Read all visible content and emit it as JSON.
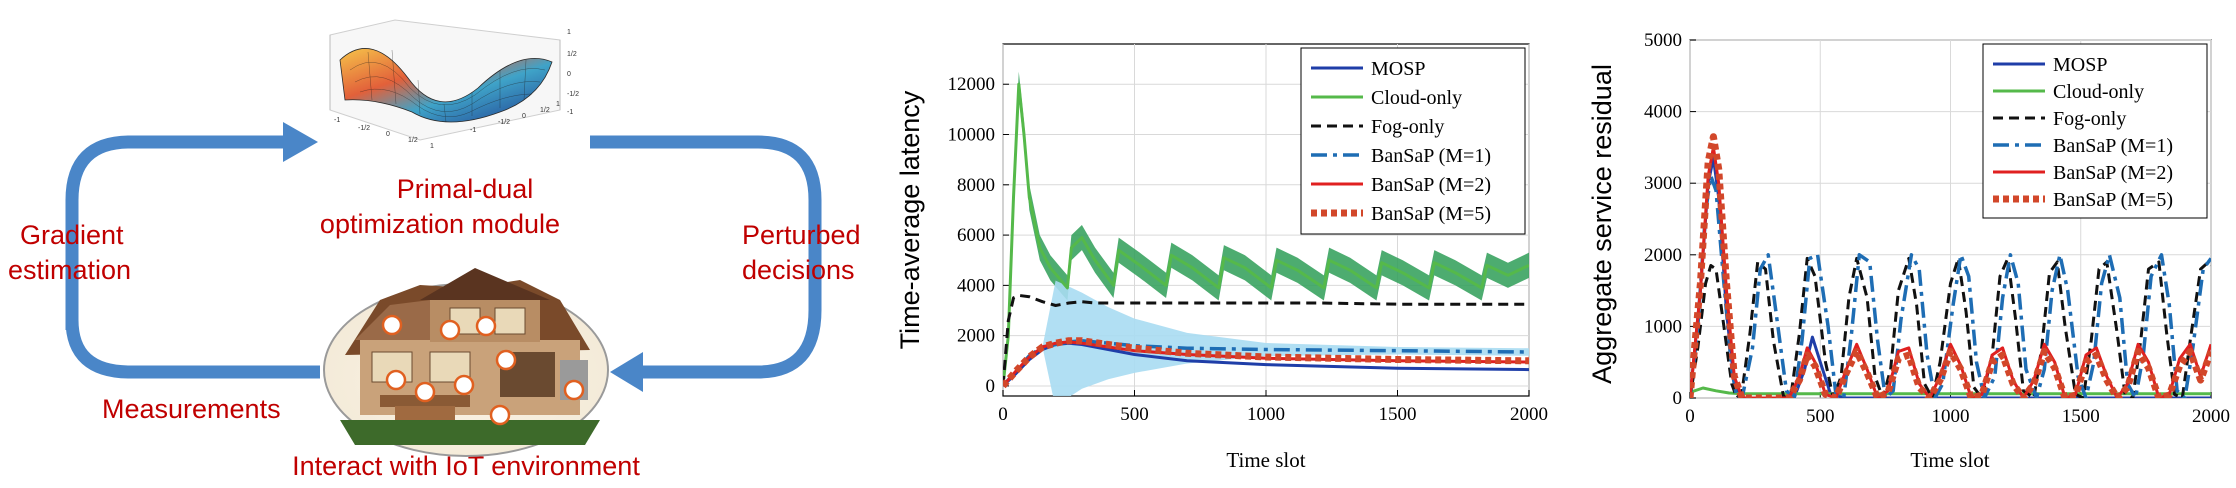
{
  "diagram": {
    "module_label_line1": "Primal-dual",
    "module_label_line2": "optimization module",
    "left_label_line1": "Gradient",
    "left_label_line2": "estimation",
    "right_label_line1": "Perturbed",
    "right_label_line2": "decisions",
    "bottom_left_label": "Measurements",
    "bottom_label": "Interact with IoT environment",
    "surface_ticks_z": [
      "1",
      "1/2",
      "0",
      "-1/2",
      "-1"
    ],
    "surface_ticks_x": [
      "-1",
      "-1/2",
      "0",
      "1/2",
      "1"
    ],
    "surface_ticks_y": [
      "-1",
      "-1/2",
      "0",
      "1/2",
      "1"
    ],
    "colors": {
      "arrow": "#4a86c8",
      "label": "#c00000"
    },
    "icons": [
      "surface-plot-image",
      "iot-house-image"
    ]
  },
  "chart_data": [
    {
      "type": "line",
      "xlabel": "Time slot",
      "ylabel": "Time-average latency",
      "xlim": [
        0,
        2000
      ],
      "ylim": [
        -400,
        13600
      ],
      "xticks": [
        0,
        500,
        1000,
        1500,
        2000
      ],
      "yticks": [
        0,
        2000,
        4000,
        6000,
        8000,
        10000,
        12000
      ],
      "grid": true,
      "legend_position": "top-right",
      "series": [
        {
          "name": "MOSP",
          "color": "#1f3ea8",
          "dash": "solid",
          "x": [
            0,
            50,
            100,
            150,
            200,
            250,
            300,
            400,
            500,
            700,
            1000,
            1500,
            2000
          ],
          "y": [
            0,
            500,
            1050,
            1450,
            1650,
            1700,
            1650,
            1450,
            1250,
            1000,
            850,
            700,
            650
          ]
        },
        {
          "name": "Cloud-only",
          "color": "#55b94a",
          "dash": "solid",
          "band_color": "#2e9e57",
          "x": [
            0,
            20,
            40,
            60,
            80,
            100,
            140,
            180,
            220,
            245,
            260,
            300,
            350,
            420,
            440,
            520,
            620,
            640,
            720,
            820,
            840,
            920,
            1020,
            1040,
            1120,
            1220,
            1240,
            1320,
            1420,
            1440,
            1520,
            1620,
            1640,
            1720,
            1820,
            1840,
            1920,
            2000
          ],
          "y": [
            0,
            2000,
            7500,
            12000,
            10000,
            7500,
            5500,
            4700,
            4200,
            3900,
            5500,
            5900,
            5000,
            4000,
            5400,
            4800,
            4000,
            5200,
            4700,
            3900,
            5100,
            4700,
            3900,
            5000,
            4600,
            3900,
            5000,
            4600,
            3900,
            4900,
            4500,
            3900,
            4900,
            4500,
            3900,
            4800,
            4400,
            4800
          ]
        },
        {
          "name": "Fog-only",
          "color": "#111111",
          "dash": "dashed",
          "x": [
            0,
            20,
            40,
            60,
            100,
            150,
            200,
            250,
            300,
            350,
            400,
            500,
            600,
            800,
            1000,
            1200,
            1500,
            1800,
            2000
          ],
          "y": [
            0,
            2600,
            3500,
            3600,
            3550,
            3350,
            3200,
            3300,
            3350,
            3300,
            3300,
            3300,
            3300,
            3300,
            3300,
            3300,
            3250,
            3250,
            3250
          ]
        },
        {
          "name": "BanSaP (M=1)",
          "color": "#1e6db4",
          "dash": "dashdot",
          "band_color": "#a9dcf2",
          "x": [
            0,
            50,
            100,
            150,
            200,
            250,
            300,
            400,
            500,
            700,
            1000,
            1500,
            2000
          ],
          "y": [
            0,
            600,
            1200,
            1550,
            1650,
            1750,
            1800,
            1700,
            1600,
            1500,
            1450,
            1400,
            1350
          ]
        },
        {
          "name": "BanSaP (M=2)",
          "color": "#e02020",
          "dash": "solid",
          "x": [
            0,
            50,
            100,
            150,
            200,
            250,
            300,
            400,
            500,
            700,
            1000,
            1500,
            2000
          ],
          "y": [
            0,
            600,
            1150,
            1550,
            1700,
            1750,
            1700,
            1550,
            1400,
            1250,
            1100,
            1000,
            950
          ]
        },
        {
          "name": "BanSaP (M=5)",
          "color": "#d2472a",
          "dash": "dotted-thick",
          "x": [
            0,
            50,
            100,
            150,
            200,
            250,
            300,
            400,
            500,
            700,
            1000,
            1500,
            2000
          ],
          "y": [
            0,
            600,
            1150,
            1550,
            1700,
            1800,
            1800,
            1650,
            1500,
            1300,
            1150,
            1050,
            1000
          ]
        }
      ]
    },
    {
      "type": "line",
      "xlabel": "Time slot",
      "ylabel": "Aggregate service residual",
      "xlim": [
        0,
        2000
      ],
      "ylim": [
        0,
        5000
      ],
      "xticks": [
        0,
        500,
        1000,
        1500,
        2000
      ],
      "yticks": [
        0,
        1000,
        2000,
        3000,
        4000,
        5000
      ],
      "grid": true,
      "legend_position": "top-right",
      "series": [
        {
          "name": "MOSP",
          "color": "#1f3ea8",
          "dash": "solid",
          "x": [
            0,
            40,
            70,
            90,
            110,
            140,
            170,
            200,
            400,
            440,
            470,
            500,
            540,
            600,
            800,
            1000,
            1500,
            2000
          ],
          "y": [
            0,
            1500,
            3000,
            3350,
            2800,
            1200,
            200,
            0,
            0,
            400,
            850,
            500,
            50,
            0,
            0,
            0,
            0,
            0
          ]
        },
        {
          "name": "Cloud-only",
          "color": "#55b94a",
          "dash": "solid",
          "x": [
            0,
            50,
            100,
            150,
            200,
            500,
            1000,
            1500,
            2000
          ],
          "y": [
            80,
            140,
            100,
            70,
            60,
            60,
            60,
            60,
            60
          ]
        },
        {
          "name": "Fog-only",
          "color": "#111111",
          "dash": "dashed",
          "x": [
            0,
            30,
            60,
            80,
            100,
            130,
            160,
            180,
            200,
            230,
            260,
            290,
            320,
            360,
            390,
            420,
            450,
            480,
            520,
            550,
            580,
            610,
            640,
            680,
            710,
            740,
            770,
            800,
            840,
            870,
            900,
            930,
            960,
            1000,
            1030,
            1060,
            1090,
            1120,
            1160,
            1190,
            1220,
            1250,
            1280,
            1320,
            1350,
            1380,
            1410,
            1440,
            1480,
            1510,
            1540,
            1570,
            1600,
            1640,
            1670,
            1700,
            1730,
            1760,
            1800,
            1830,
            1860,
            1890,
            1920,
            1960,
            1990,
            2000
          ],
          "y": [
            0,
            700,
            1600,
            1850,
            1800,
            1000,
            200,
            0,
            100,
            900,
            1900,
            1800,
            800,
            0,
            100,
            900,
            1950,
            1700,
            500,
            0,
            300,
            1400,
            1950,
            1400,
            300,
            0,
            400,
            1500,
            1950,
            1300,
            200,
            0,
            500,
            1600,
            1950,
            1200,
            150,
            0,
            600,
            1700,
            1950,
            1100,
            100,
            0,
            700,
            1750,
            1900,
            1000,
            50,
            0,
            800,
            1800,
            1900,
            900,
            50,
            0,
            800,
            1800,
            1900,
            900,
            50,
            0,
            800,
            1800,
            1900,
            1850
          ]
        },
        {
          "name": "BanSaP (M=1)",
          "color": "#1e6db4",
          "dash": "dashdot",
          "x": [
            0,
            30,
            60,
            80,
            100,
            130,
            160,
            180,
            200,
            240,
            270,
            300,
            330,
            370,
            400,
            430,
            460,
            490,
            530,
            560,
            590,
            620,
            650,
            690,
            720,
            750,
            780,
            810,
            850,
            880,
            910,
            940,
            970,
            1010,
            1040,
            1070,
            1100,
            1130,
            1170,
            1200,
            1230,
            1260,
            1290,
            1330,
            1360,
            1390,
            1420,
            1450,
            1490,
            1520,
            1550,
            1580,
            1610,
            1650,
            1680,
            1710,
            1740,
            1770,
            1810,
            1840,
            1870,
            1900,
            1930,
            1970,
            2000
          ],
          "y": [
            0,
            1000,
            2600,
            3100,
            2900,
            1600,
            400,
            0,
            0,
            700,
            1800,
            2000,
            1200,
            100,
            0,
            800,
            1950,
            2000,
            1000,
            50,
            0,
            900,
            2000,
            1900,
            800,
            0,
            100,
            1100,
            2000,
            1800,
            600,
            0,
            200,
            1300,
            2000,
            1700,
            500,
            0,
            300,
            1400,
            2000,
            1600,
            400,
            0,
            400,
            1500,
            2000,
            1500,
            300,
            0,
            500,
            1600,
            2000,
            1400,
            200,
            0,
            600,
            1700,
            2000,
            1300,
            100,
            0,
            700,
            1800,
            1950
          ]
        },
        {
          "name": "BanSaP (M=2)",
          "color": "#e02020",
          "dash": "solid",
          "x": [
            0,
            40,
            70,
            90,
            110,
            140,
            170,
            200,
            380,
            420,
            450,
            480,
            520,
            560,
            600,
            640,
            680,
            720,
            760,
            800,
            840,
            880,
            920,
            960,
            1000,
            1040,
            1080,
            1120,
            1160,
            1200,
            1240,
            1280,
            1320,
            1360,
            1400,
            1440,
            1480,
            1520,
            1560,
            1600,
            1640,
            1680,
            1720,
            1760,
            1800,
            1840,
            1880,
            1920,
            1960,
            2000
          ],
          "y": [
            0,
            1500,
            3100,
            3500,
            3000,
            1500,
            300,
            0,
            0,
            300,
            700,
            500,
            50,
            0,
            400,
            750,
            400,
            0,
            100,
            650,
            700,
            200,
            0,
            300,
            750,
            450,
            0,
            50,
            600,
            700,
            250,
            0,
            250,
            750,
            500,
            0,
            50,
            600,
            700,
            300,
            0,
            200,
            750,
            500,
            0,
            50,
            550,
            750,
            300,
            750
          ]
        },
        {
          "name": "BanSaP (M=5)",
          "color": "#d2472a",
          "dash": "dotted-thick",
          "x": [
            0,
            40,
            70,
            90,
            110,
            140,
            170,
            200,
            380,
            420,
            450,
            480,
            520,
            560,
            600,
            640,
            680,
            720,
            760,
            800,
            840,
            880,
            920,
            960,
            1000,
            1040,
            1080,
            1120,
            1160,
            1200,
            1240,
            1280,
            1320,
            1360,
            1400,
            1440,
            1480,
            1520,
            1560,
            1600,
            1640,
            1680,
            1720,
            1760,
            1800,
            1840,
            1880,
            1920,
            1960,
            2000
          ],
          "y": [
            0,
            1600,
            3300,
            3650,
            3200,
            1600,
            300,
            0,
            0,
            250,
            600,
            450,
            50,
            0,
            350,
            650,
            350,
            0,
            80,
            550,
            600,
            150,
            0,
            250,
            650,
            400,
            0,
            40,
            500,
            600,
            200,
            0,
            200,
            650,
            420,
            0,
            40,
            500,
            600,
            250,
            0,
            150,
            650,
            420,
            0,
            40,
            450,
            650,
            250,
            650
          ]
        }
      ]
    }
  ]
}
